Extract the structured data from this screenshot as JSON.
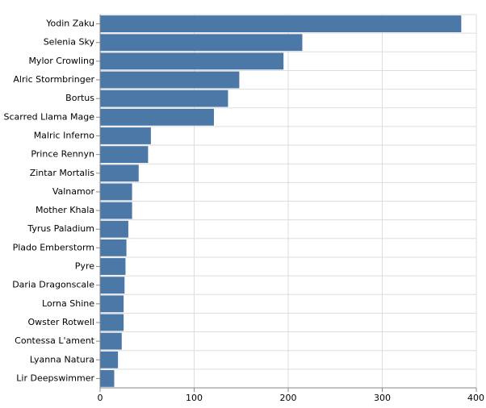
{
  "chart_data": {
    "type": "hbar",
    "categories": [
      "Yodin Zaku",
      "Selenia Sky",
      "Mylor Crowling",
      "Alric Stormbringer",
      "Bortus",
      "Scarred Llama Mage",
      "Malric Inferno",
      "Prince Rennyn",
      "Zintar Mortalis",
      "Valnamor",
      "Mother Khala",
      "Tyrus Paladium",
      "Plado Emberstorm",
      "Pyre",
      "Daria Dragonscale",
      "Lorna Shine",
      "Owster Rotwell",
      "Contessa L'ament",
      "Lyanna Natura",
      "Lir Deepswimmer"
    ],
    "values": [
      384,
      215,
      195,
      148,
      136,
      121,
      54,
      51,
      41,
      34,
      34,
      30,
      28,
      27,
      26,
      25,
      25,
      23,
      19,
      15
    ],
    "color": "#4c78a8",
    "xlim": [
      0,
      400
    ],
    "xticks": [
      0,
      100,
      200,
      300,
      400
    ],
    "grid": true
  }
}
